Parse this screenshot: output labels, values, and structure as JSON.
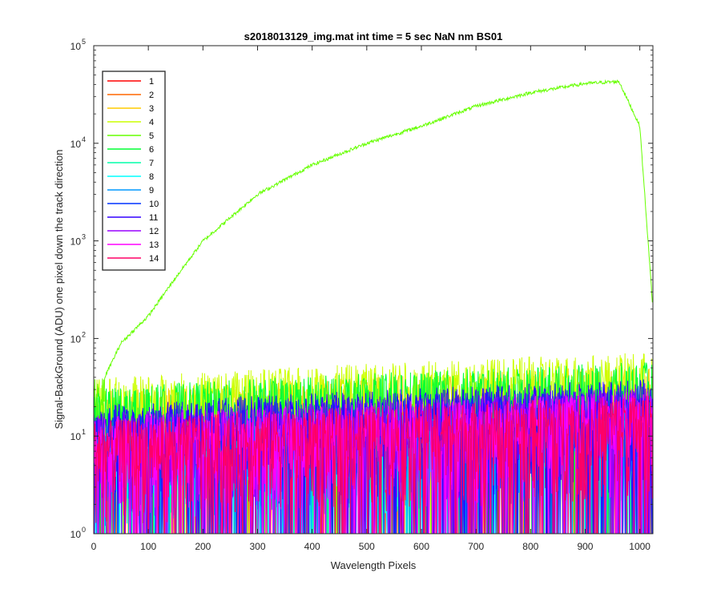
{
  "chart_data": {
    "type": "line",
    "title": "s2018013129_img.mat int time = 5 sec  NaN nm BS01",
    "xlabel": "Wavelength Pixels",
    "ylabel": "Signal-BackGround (ADU) one pixel down the track direction",
    "xlim": [
      0,
      1024
    ],
    "ylim": [
      1,
      100000
    ],
    "yscale": "log",
    "grid": false,
    "legend_position": "top-left",
    "x_ticks": [
      "0",
      "100",
      "200",
      "300",
      "400",
      "500",
      "600",
      "700",
      "800",
      "900",
      "1000"
    ],
    "y_tick_bases": [
      "10",
      "10",
      "10",
      "10",
      "10",
      "10"
    ],
    "y_tick_exponents": [
      "0",
      "1",
      "2",
      "3",
      "4",
      "5"
    ],
    "series": [
      {
        "name": "1",
        "color": "#ff0000",
        "level": 12
      },
      {
        "name": "2",
        "color": "#ff6600",
        "level": 14
      },
      {
        "name": "3",
        "color": "#ffcc00",
        "level": 22
      },
      {
        "name": "4",
        "color": "#ccff00",
        "level": 30
      },
      {
        "name": "5",
        "color": "#66ff00",
        "level": 30,
        "peak_x": 962,
        "peak_y": 43000
      },
      {
        "name": "6",
        "color": "#00ff33",
        "level": 24
      },
      {
        "name": "7",
        "color": "#00ffaa",
        "level": 10
      },
      {
        "name": "8",
        "color": "#00ffff",
        "level": 9
      },
      {
        "name": "9",
        "color": "#0099ff",
        "level": 11
      },
      {
        "name": "10",
        "color": "#0033ff",
        "level": 14
      },
      {
        "name": "11",
        "color": "#3300ff",
        "level": 16
      },
      {
        "name": "12",
        "color": "#9900ff",
        "level": 13
      },
      {
        "name": "13",
        "color": "#ff00ff",
        "level": 12
      },
      {
        "name": "14",
        "color": "#ff0066",
        "level": 11
      }
    ],
    "signal_profile": {
      "series": "5",
      "x": [
        20,
        50,
        100,
        150,
        200,
        300,
        400,
        500,
        600,
        700,
        800,
        900,
        962,
        1000,
        1010,
        1024
      ],
      "y": [
        40,
        90,
        170,
        420,
        1000,
        3000,
        6000,
        10000,
        15000,
        24000,
        33000,
        41000,
        43000,
        15000,
        2500,
        200
      ]
    }
  }
}
